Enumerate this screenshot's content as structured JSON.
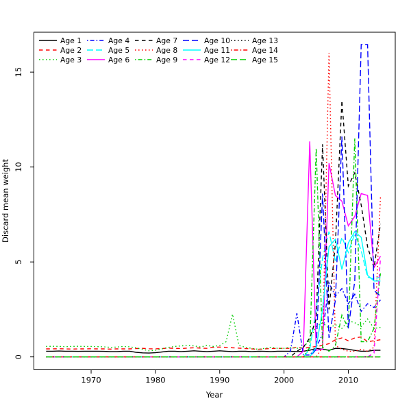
{
  "figure": {
    "background": "#ffffff",
    "axis_color": "#000000"
  },
  "chart_data": {
    "type": "line",
    "title": "",
    "xlabel": "Year",
    "ylabel": "Discard mean weight",
    "x_start": 1963,
    "x_end": 2015,
    "xticks": [
      1970,
      1980,
      1990,
      2000,
      2010
    ],
    "yticks": [
      0,
      5,
      10,
      15
    ],
    "xlim": [
      1961.1,
      2017.3
    ],
    "ylim": [
      -0.68,
      17.1
    ],
    "grid": false,
    "legend_position": "top-left",
    "legend_columns": 5,
    "series": [
      {
        "name": "Age 1",
        "color": "#000000",
        "dash": "solid",
        "values": [
          0.3,
          0.3,
          0.31,
          0.3,
          0.3,
          0.29,
          0.3,
          0.3,
          0.3,
          0.29,
          0.28,
          0.28,
          0.3,
          0.3,
          0.24,
          0.21,
          0.2,
          0.22,
          0.26,
          0.3,
          0.3,
          0.28,
          0.3,
          0.32,
          0.3,
          0.28,
          0.3,
          0.32,
          0.3,
          0.28,
          0.3,
          0.3,
          0.28,
          0.3,
          0.29,
          0.28,
          0.3,
          0.3,
          0.3,
          0.28,
          0.3,
          0.35,
          0.45,
          0.4,
          0.35,
          0.45,
          0.44,
          0.4,
          0.34,
          0.3,
          0.3,
          0.35,
          0.35
        ]
      },
      {
        "name": "Age 2",
        "color": "#FF0000",
        "dash": "dashed",
        "values": [
          0.42,
          0.42,
          0.43,
          0.42,
          0.41,
          0.42,
          0.42,
          0.43,
          0.42,
          0.42,
          0.41,
          0.42,
          0.42,
          0.42,
          0.44,
          0.45,
          0.43,
          0.42,
          0.44,
          0.46,
          0.45,
          0.44,
          0.46,
          0.48,
          0.46,
          0.45,
          0.5,
          0.52,
          0.5,
          0.48,
          0.46,
          0.44,
          0.42,
          0.4,
          0.42,
          0.44,
          0.45,
          0.45,
          0.45,
          0.5,
          0.45,
          0.5,
          0.55,
          0.6,
          0.7,
          0.9,
          1.0,
          0.85,
          1.0,
          1.05,
          0.8,
          0.85,
          0.9
        ]
      },
      {
        "name": "Age 3",
        "color": "#00CD00",
        "dash": "dotted",
        "values": [
          0.55,
          0.56,
          0.55,
          0.54,
          0.55,
          0.56,
          0.55,
          0.55,
          0.54,
          0.53,
          0.5,
          0.52,
          0.55,
          0.53,
          0.48,
          0.4,
          0.32,
          0.35,
          0.42,
          0.5,
          0.55,
          0.58,
          0.6,
          0.58,
          0.52,
          0.6,
          0.55,
          0.6,
          0.8,
          2.25,
          0.6,
          0.5,
          0.45,
          0.4,
          0.45,
          0.5,
          0.45,
          0.45,
          0.5,
          0.45,
          0.5,
          0.9,
          1.6,
          1.8,
          1.5,
          1.7,
          1.5,
          1.9,
          1.8,
          1.6,
          2.0,
          1.5,
          1.55
        ]
      },
      {
        "name": "Age 4",
        "color": "#0000FF",
        "dash": "dotdash",
        "values": [
          0,
          0,
          0,
          0,
          0,
          0,
          0,
          0,
          0,
          0,
          0,
          0,
          0,
          0,
          0,
          0,
          0,
          0,
          0,
          0,
          0,
          0,
          0,
          0,
          0,
          0,
          0,
          0,
          0,
          0,
          0,
          0,
          0,
          0,
          0,
          0,
          0,
          0,
          0.3,
          2.3,
          0.1,
          0.1,
          0.5,
          1.2,
          3.9,
          3.2,
          3.6,
          2.8,
          3.3,
          2.4,
          2.8,
          2.6,
          3.0
        ]
      },
      {
        "name": "Age 5",
        "color": "#00FFFF",
        "dash": "longdash",
        "values": [
          0,
          0,
          0,
          0,
          0,
          0,
          0,
          0,
          0,
          0,
          0,
          0,
          0,
          0,
          0,
          0,
          0,
          0,
          0,
          0,
          0,
          0,
          0,
          0,
          0,
          0,
          0,
          0,
          0,
          0,
          0,
          0,
          0,
          0,
          0,
          0,
          0,
          0,
          0,
          0,
          0,
          0.4,
          2.5,
          5.2,
          6.6,
          5.0,
          6.3,
          5.5,
          6.5,
          5.6,
          4.2,
          4.1,
          4.2
        ]
      },
      {
        "name": "Age 6",
        "color": "#FF00FF",
        "dash": "solid",
        "values": [
          0,
          0,
          0,
          0,
          0,
          0,
          0,
          0,
          0,
          0,
          0,
          0,
          0,
          0,
          0,
          0,
          0,
          0,
          0,
          0,
          0,
          0,
          0,
          0,
          0,
          0,
          0,
          0,
          0,
          0,
          0,
          0,
          0,
          0,
          0,
          0,
          0,
          0,
          0,
          0,
          0.3,
          11.35,
          0.35,
          0.4,
          10.2,
          8.5,
          8.2,
          6.9,
          7.4,
          8.6,
          8.5,
          4.7,
          5.3
        ]
      },
      {
        "name": "Age 7",
        "color": "#000000",
        "dash": "dashed",
        "values": [
          0,
          0,
          0,
          0,
          0,
          0,
          0,
          0,
          0,
          0,
          0,
          0,
          0,
          0,
          0,
          0,
          0,
          0,
          0,
          0,
          0,
          0,
          0,
          0,
          0,
          0,
          0,
          0,
          0,
          0,
          0,
          0,
          0,
          0,
          0,
          0,
          0,
          0,
          0,
          0.3,
          0.5,
          1.0,
          2.0,
          11.2,
          2.5,
          6.0,
          13.5,
          9.0,
          9.7,
          8.0,
          5.8,
          4.7,
          7.0
        ]
      },
      {
        "name": "Age 8",
        "color": "#FF0000",
        "dash": "dotted",
        "values": [
          0,
          0,
          0,
          0,
          0,
          0,
          0,
          0,
          0,
          0,
          0,
          0,
          0,
          0,
          0,
          0,
          0,
          0,
          0,
          0,
          0,
          0,
          0,
          0,
          0,
          0,
          0,
          0,
          0,
          0,
          0,
          0,
          0,
          0,
          0,
          0,
          0,
          0,
          0,
          0,
          0,
          0,
          0,
          0.5,
          16.0,
          0.6,
          0.4,
          0.3,
          0.3,
          0.4,
          0.3,
          0.5,
          8.4
        ]
      },
      {
        "name": "Age 9",
        "color": "#00CD00",
        "dash": "dotdash",
        "values": [
          0,
          0,
          0,
          0,
          0,
          0,
          0,
          0,
          0,
          0,
          0,
          0,
          0,
          0,
          0,
          0,
          0,
          0,
          0,
          0,
          0,
          0,
          0,
          0,
          0,
          0,
          0,
          0,
          0,
          0,
          0,
          0,
          0,
          0,
          0,
          0,
          0,
          0,
          0,
          0,
          0,
          0.5,
          11.0,
          0.5,
          0.3,
          0.6,
          2.2,
          1.5,
          11.5,
          0.8,
          0.8,
          1.5,
          4.4
        ]
      },
      {
        "name": "Age 10",
        "color": "#0000FF",
        "dash": "longdash",
        "values": [
          0,
          0,
          0,
          0,
          0,
          0,
          0,
          0,
          0,
          0,
          0,
          0,
          0,
          0,
          0,
          0,
          0,
          0,
          0,
          0,
          0,
          0,
          0,
          0,
          0,
          0,
          0,
          0,
          0,
          0,
          0,
          0,
          0,
          0,
          0,
          0,
          0,
          0,
          0,
          0,
          0,
          0,
          0.4,
          8.6,
          1.0,
          3.0,
          11.6,
          1.5,
          4.0,
          16.45,
          16.45,
          3.5,
          3.2
        ]
      },
      {
        "name": "Age 11",
        "color": "#00FFFF",
        "dash": "solid",
        "values": [
          0,
          0,
          0,
          0,
          0,
          0,
          0,
          0,
          0,
          0,
          0,
          0,
          0,
          0,
          0,
          0,
          0,
          0,
          0,
          0,
          0,
          0,
          0,
          0,
          0,
          0,
          0,
          0,
          0,
          0,
          0,
          0,
          0,
          0,
          0,
          0,
          0,
          0,
          0,
          0,
          0,
          0,
          0.5,
          2.5,
          5.8,
          6.2,
          4.6,
          6.0,
          6.6,
          6.3,
          4.3,
          4.0,
          4.0
        ]
      },
      {
        "name": "Age 12",
        "color": "#FF00FF",
        "dash": "dashed",
        "values": [
          0,
          0,
          0,
          0,
          0,
          0,
          0,
          0,
          0,
          0,
          0,
          0,
          0,
          0,
          0,
          0,
          0,
          0,
          0,
          0,
          0,
          0,
          0,
          0,
          0,
          0,
          0,
          0,
          0,
          0,
          0,
          0,
          0,
          0,
          0,
          0,
          0,
          0,
          0,
          0,
          0,
          0,
          0,
          0,
          0,
          0,
          0,
          0,
          0,
          0,
          0,
          0.2,
          5.2
        ]
      },
      {
        "name": "Age 13",
        "color": "#000000",
        "dash": "dotted",
        "values": [
          0,
          0,
          0,
          0,
          0,
          0,
          0,
          0,
          0,
          0,
          0,
          0,
          0,
          0,
          0,
          0,
          0,
          0,
          0,
          0,
          0,
          0,
          0,
          0,
          0,
          0,
          0,
          0,
          0,
          0,
          0,
          0,
          0,
          0,
          0,
          0,
          0,
          0,
          0,
          0,
          0,
          0,
          0,
          0,
          0,
          0,
          0,
          0,
          0,
          0,
          0,
          0,
          0
        ]
      },
      {
        "name": "Age 14",
        "color": "#FF0000",
        "dash": "dotdash",
        "values": [
          0,
          0,
          0,
          0,
          0,
          0,
          0,
          0,
          0,
          0,
          0,
          0,
          0,
          0,
          0,
          0,
          0,
          0,
          0,
          0,
          0,
          0,
          0,
          0,
          0,
          0,
          0,
          0,
          0,
          0,
          0,
          0,
          0,
          0,
          0,
          0,
          0,
          0,
          0,
          0,
          0,
          0,
          0,
          0,
          0,
          0,
          0,
          0,
          0,
          0,
          0,
          0,
          0
        ]
      },
      {
        "name": "Age 15",
        "color": "#00CD00",
        "dash": "longdash",
        "values": [
          0,
          0,
          0,
          0,
          0,
          0,
          0,
          0,
          0,
          0,
          0,
          0,
          0,
          0,
          0,
          0,
          0,
          0,
          0,
          0,
          0,
          0,
          0,
          0,
          0,
          0,
          0,
          0,
          0,
          0,
          0,
          0,
          0,
          0,
          0,
          0,
          0,
          0,
          0,
          0,
          0,
          0,
          0,
          0,
          0,
          0,
          0,
          0,
          0,
          0,
          0,
          0,
          0
        ]
      }
    ]
  }
}
